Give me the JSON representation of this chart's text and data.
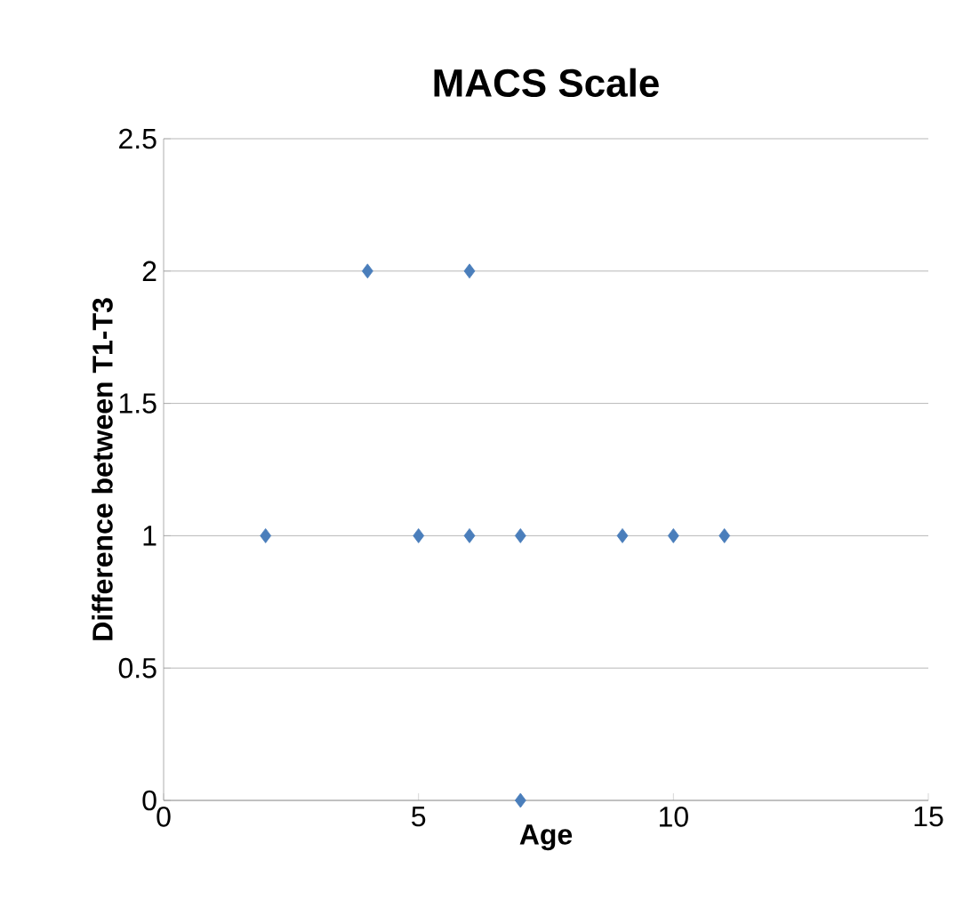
{
  "chart_data": {
    "type": "scatter",
    "title": "MACS Scale",
    "xlabel": "Age",
    "ylabel": "Difference between T1-T3",
    "x": [
      2,
      4,
      5,
      6,
      6,
      7,
      7,
      9,
      10,
      11
    ],
    "values": [
      1,
      2,
      1,
      2,
      1,
      1,
      0,
      1,
      1,
      1
    ],
    "color": "#4a7ebb",
    "marker": "diamond",
    "grid": "y",
    "xlim": [
      0,
      15
    ],
    "xticks": [
      0,
      5,
      10,
      15
    ],
    "ylim": [
      0,
      2.5
    ],
    "yticks": [
      0,
      0.5,
      1,
      1.5,
      2,
      2.5
    ]
  }
}
